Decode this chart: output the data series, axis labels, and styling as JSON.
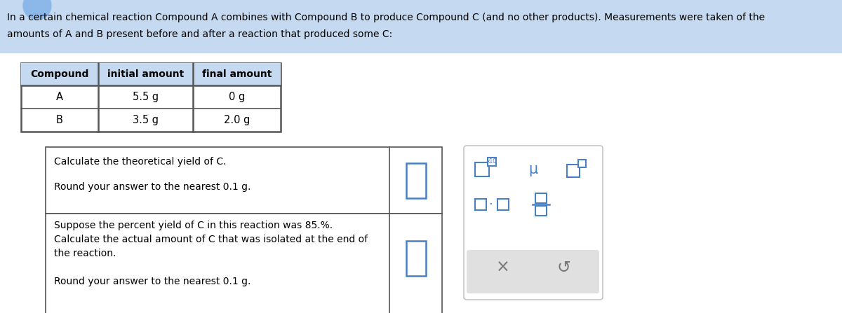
{
  "bg_header_color": "#c5daf0",
  "bg_white": "#ffffff",
  "bg_light_gray": "#e0e0e0",
  "border_color": "#555555",
  "blue_color": "#4a7fc1",
  "text_color": "#000000",
  "gray_text": "#777777",
  "header_line1": "In a certain chemical reaction Compound A combines with Compound B to produce Compound C (and no other products). Measurements were taken of the",
  "header_line2": "amounts of A and B present before and after a reaction that produced some C:",
  "table_headers": [
    "Compound",
    "initial amount",
    "final amount"
  ],
  "table_rows": [
    [
      "A",
      "5.5 g",
      "0 g"
    ],
    [
      "B",
      "3.5 g",
      "2.0 g"
    ]
  ],
  "q1_line1": "Calculate the theoretical yield of C.",
  "q1_line2": "Round your answer to the nearest 0.1 g.",
  "q2_line1": "Suppose the percent yield of C in this reaction was 85.%.",
  "q2_line2": "Calculate the actual amount of C that was isolated at the end of",
  "q2_line3": "the reaction.",
  "q2_line4": "Round your answer to the nearest 0.1 g."
}
